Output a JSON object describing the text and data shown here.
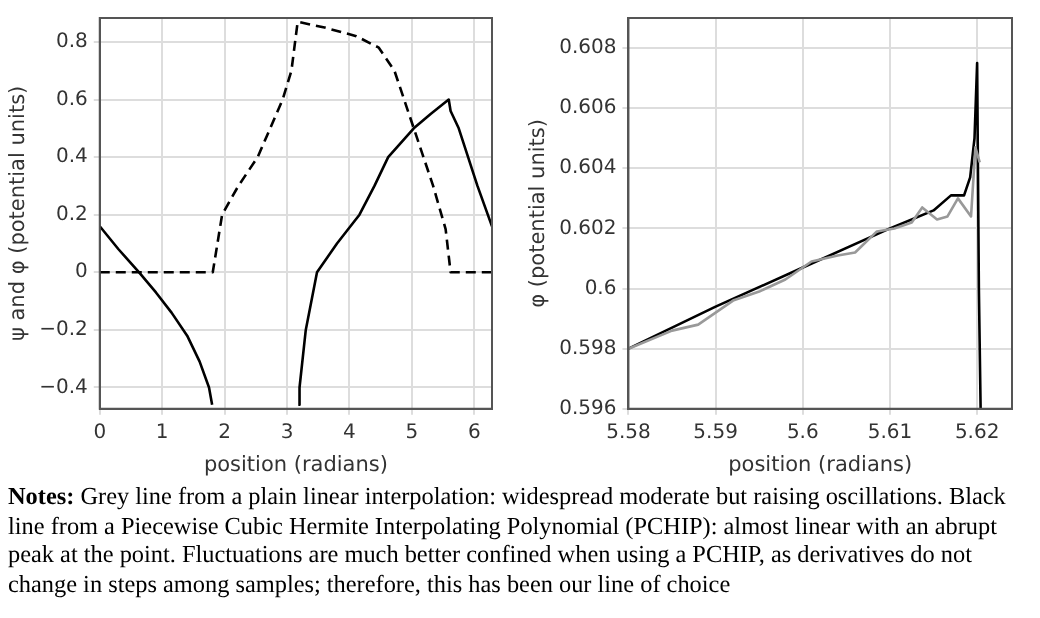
{
  "chart_data": [
    {
      "type": "line",
      "xlabel": "position (radians)",
      "ylabel": "ψ and φ (potential units)",
      "xlim": [
        0,
        6.283
      ],
      "ylim": [
        -0.474,
        0.883
      ],
      "xticks": [
        0,
        1,
        2,
        3,
        4,
        5,
        6
      ],
      "yticks": [
        {
          "value": -0.4,
          "label": "−0.4"
        },
        {
          "value": -0.2,
          "label": "−0.2"
        },
        0,
        0.2,
        0.4,
        0.6,
        0.8
      ],
      "grid": true,
      "series": [
        {
          "color": "#000000",
          "line_style": "solid",
          "x": [
            0,
            0.3,
            0.63,
            0.9,
            1.15,
            1.4,
            1.6,
            1.75,
            1.8,
            2.5,
            3.18,
            3.2,
            3.3,
            3.48,
            3.8,
            4.16,
            4.4,
            4.62,
            5.03,
            5.3,
            5.59,
            5.62,
            5.75,
            6.05,
            6.283
          ],
          "values": [
            0.16,
            0.08,
            0,
            -0.07,
            -0.14,
            -0.22,
            -0.31,
            -0.4,
            -0.46,
            null,
            -0.46,
            -0.4,
            -0.2,
            0,
            0.1,
            0.2,
            0.3,
            0.4,
            0.5,
            0.55,
            0.6,
            0.56,
            0.5,
            0.3,
            0.16
          ]
        },
        {
          "color": "#000000",
          "line_style": "dashed",
          "x": [
            0,
            1.81,
            1.9,
            1.96,
            2.22,
            2.53,
            2.73,
            2.93,
            3.07,
            3.17,
            3.6,
            4.11,
            4.47,
            4.72,
            5.03,
            5.34,
            5.54,
            5.62,
            6.283
          ],
          "values": [
            0,
            0,
            0.12,
            0.2,
            0.3,
            0.4,
            0.5,
            0.6,
            0.7,
            0.87,
            0.85,
            0.82,
            0.78,
            0.7,
            0.5,
            0.3,
            0.15,
            0,
            0
          ]
        }
      ]
    },
    {
      "type": "line",
      "xlabel": "position (radians)",
      "ylabel": "φ (potential units)",
      "xlim": [
        5.58,
        5.624
      ],
      "ylim": [
        0.596,
        0.609
      ],
      "xticks": [
        5.58,
        5.59,
        5.6,
        5.61,
        5.62
      ],
      "yticks": [
        0.596,
        0.598,
        0.6,
        0.602,
        0.604,
        0.606,
        0.608
      ],
      "grid": true,
      "series": [
        {
          "color": "#999999",
          "line_style": "solid",
          "x": [
            5.58,
            5.585,
            5.588,
            5.592,
            5.595,
            5.598,
            5.601,
            5.604,
            5.606,
            5.6085,
            5.6105,
            5.6125,
            5.6137,
            5.6154,
            5.6166,
            5.6178,
            5.6193,
            5.6198,
            5.6203
          ],
          "values": [
            0.598,
            0.5986,
            0.5988,
            0.5996,
            0.5999,
            0.6003,
            0.6009,
            0.6011,
            0.6012,
            0.6019,
            0.602,
            0.6022,
            0.6027,
            0.6023,
            0.6024,
            0.603,
            0.6024,
            0.6047,
            0.6042
          ]
        },
        {
          "color": "#000000",
          "line_style": "solid",
          "x": [
            5.58,
            5.59,
            5.6,
            5.61,
            5.615,
            5.617,
            5.6185,
            5.6192,
            5.6197,
            5.62,
            5.6202,
            5.6204
          ],
          "values": [
            0.598,
            0.5994,
            0.6007,
            0.602,
            0.6026,
            0.6031,
            0.6031,
            0.6037,
            0.605,
            0.6075,
            0.6,
            0.596
          ]
        }
      ],
      "annotations": [
        "Notes: Grey line from a plain linear interpolation: widespread moderate but raising oscillations. Black line from a Piecewise Cubic Hermite Interpolating Polynomial (PCHIP): almost linear with an abrupt peak at the point. Fluctuations are much better confined when using a PCHIP, as derivatives do not change in steps among samples; therefore, this has been our line of choice"
      ]
    }
  ]
}
